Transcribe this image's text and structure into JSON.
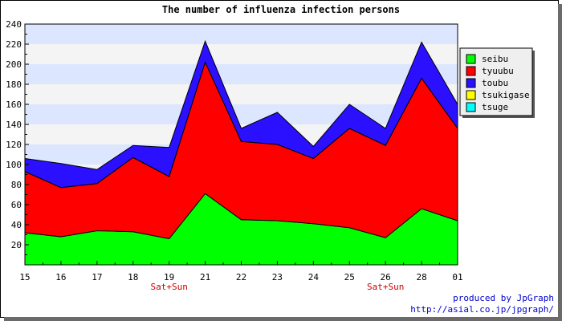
{
  "chart_data": {
    "type": "area",
    "stacked": true,
    "title": "The number of influenza infection persons",
    "xlabel": "",
    "ylabel": "",
    "ylim": [
      0,
      240
    ],
    "yticks": [
      20,
      40,
      60,
      80,
      100,
      120,
      140,
      160,
      180,
      200,
      220,
      240
    ],
    "categories": [
      "15",
      "16",
      "17",
      "18",
      "19",
      "21",
      "22",
      "23",
      "24",
      "25",
      "26",
      "28",
      "01"
    ],
    "weekend_markers": [
      {
        "category": "19",
        "label": "Sat+Sun"
      },
      {
        "category": "26",
        "label": "Sat+Sun"
      }
    ],
    "grid": true,
    "legend_position": "right",
    "series": [
      {
        "name": "seibu",
        "color": "#00ff00",
        "values": [
          32,
          28,
          34,
          33,
          26,
          71,
          45,
          44,
          41,
          37,
          27,
          56,
          44
        ]
      },
      {
        "name": "tyuubu",
        "color": "#ff0000",
        "values": [
          61,
          49,
          47,
          74,
          62,
          131,
          78,
          76,
          65,
          99,
          92,
          130,
          92
        ]
      },
      {
        "name": "toubu",
        "color": "#2a10ff",
        "values": [
          13,
          24,
          14,
          12,
          29,
          21,
          13,
          32,
          12,
          24,
          17,
          36,
          24
        ]
      },
      {
        "name": "tsukigase",
        "color": "#ffff00",
        "values": [
          0,
          0,
          0,
          0,
          0,
          0,
          0,
          0,
          0,
          0,
          0,
          0,
          0
        ]
      },
      {
        "name": "tsuge",
        "color": "#00ffff",
        "values": [
          0,
          0,
          0,
          0,
          0,
          0,
          0,
          0,
          0,
          0,
          0,
          0,
          0
        ]
      }
    ]
  },
  "credit": {
    "line1": "produced by JpGraph",
    "line2": "http://asial.co.jp/jpgraph/"
  }
}
